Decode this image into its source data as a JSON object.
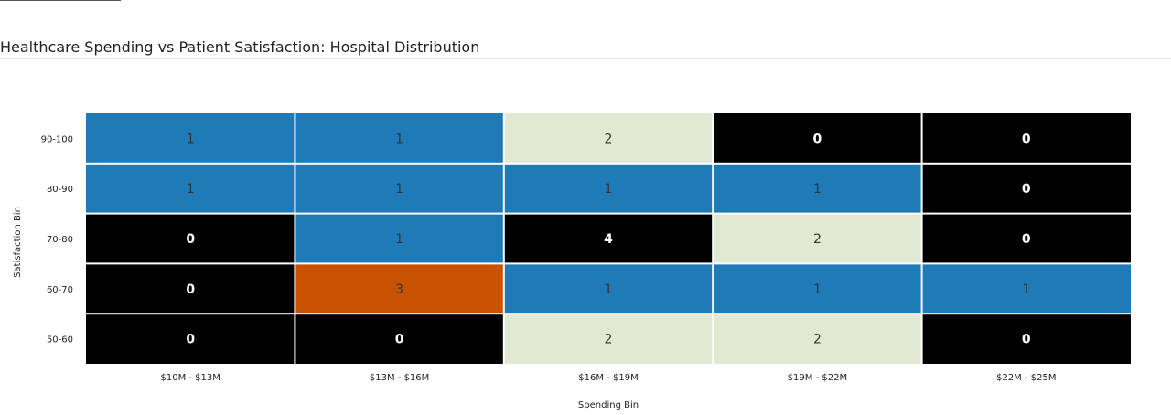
{
  "title": "Healthcare Spending vs Patient Satisfaction: Hospital Distribution",
  "chart_data": {
    "type": "heatmap",
    "title": "Healthcare Spending vs Patient Satisfaction: Hospital Distribution",
    "xlabel": "Spending Bin",
    "ylabel": "Satisfaction Bin",
    "x_categories": [
      "$10M - $13M",
      "$13M - $16M",
      "$16M - $19M",
      "$19M - $22M",
      "$22M - $25M"
    ],
    "y_categories": [
      "90-100",
      "80-90",
      "70-80",
      "60-70",
      "50-60"
    ],
    "values": [
      [
        1,
        1,
        2,
        0,
        0
      ],
      [
        1,
        1,
        1,
        1,
        0
      ],
      [
        0,
        1,
        4,
        2,
        0
      ],
      [
        0,
        3,
        1,
        1,
        1
      ],
      [
        0,
        0,
        2,
        2,
        0
      ]
    ],
    "colors": {
      "0": "#000000",
      "1": "#1f7bb8",
      "2": "#e1e9d2",
      "3": "#c85200",
      "4": "#000000"
    }
  }
}
